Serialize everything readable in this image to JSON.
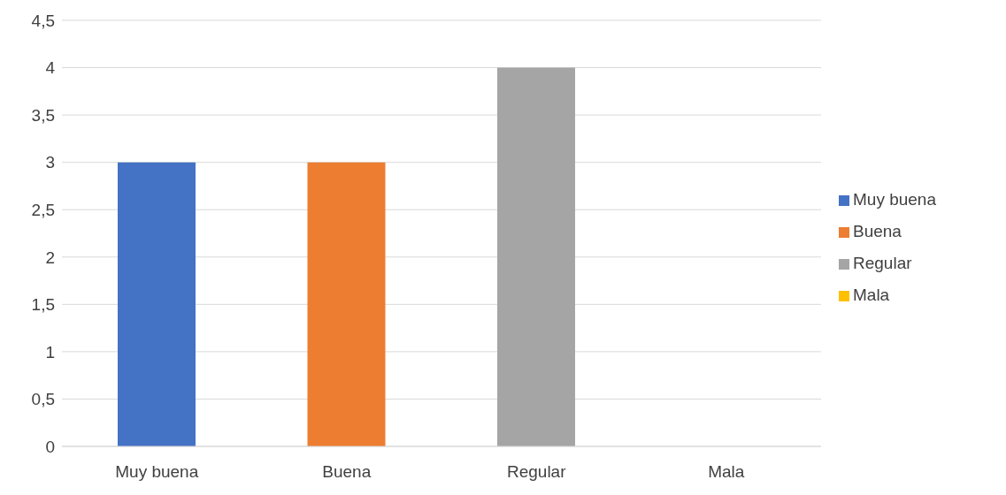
{
  "chart_data": {
    "type": "bar",
    "categories": [
      "Muy buena",
      "Buena",
      "Regular",
      "Mala"
    ],
    "stacked": true,
    "series": [
      {
        "name": "Muy buena",
        "color": "#4472c4",
        "values": [
          3,
          null,
          null,
          null
        ]
      },
      {
        "name": "Buena",
        "color": "#ed7d31",
        "values": [
          null,
          3,
          null,
          null
        ]
      },
      {
        "name": "Regular",
        "color": "#a5a5a5",
        "values": [
          null,
          null,
          4,
          null
        ]
      },
      {
        "name": "Mala",
        "color": "#ffc000",
        "values": [
          null,
          null,
          null,
          0
        ]
      }
    ],
    "ylim": [
      0,
      4.5
    ],
    "yticks": [
      0,
      {
        "value": 0.5,
        "label": "0,5"
      },
      1,
      {
        "value": 1.5,
        "label": "1,5"
      },
      2,
      {
        "value": 2.5,
        "label": "2,5"
      },
      3,
      {
        "value": 3.5,
        "label": "3,5"
      },
      4,
      {
        "value": 4.5,
        "label": "4,5"
      }
    ],
    "grid": "y",
    "legend": "right"
  }
}
